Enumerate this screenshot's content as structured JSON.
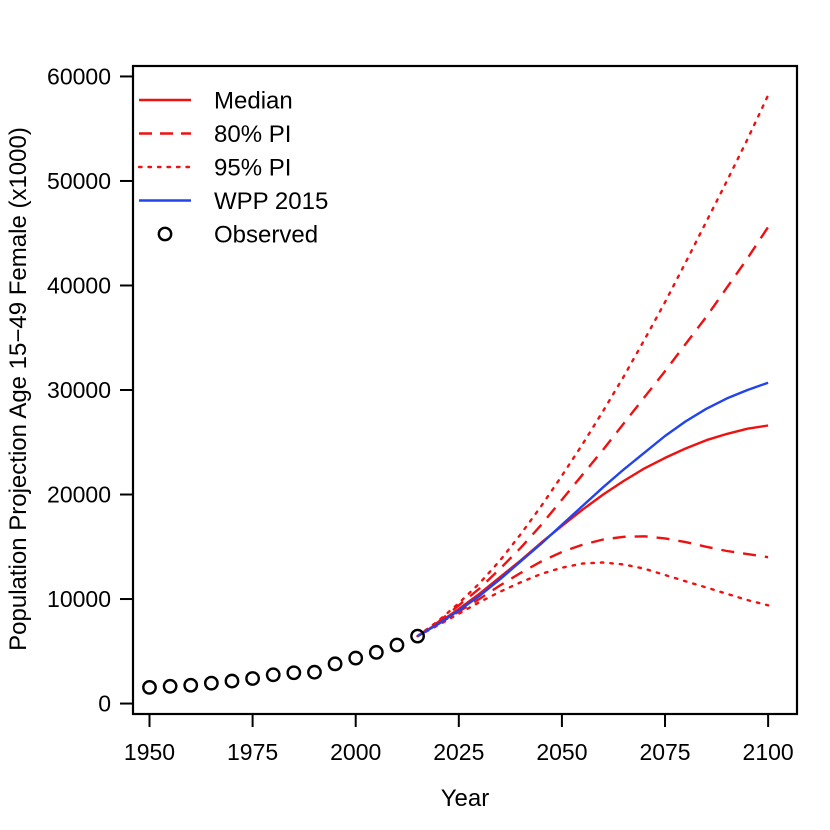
{
  "chart_data": {
    "type": "line",
    "title": "",
    "xlabel": "Year",
    "ylabel": "Population Projection Age 15−49 Female (x1000)",
    "xlim": [
      1946,
      2107
    ],
    "ylim": [
      -1000,
      61000
    ],
    "x_ticks": [
      1950,
      1975,
      2000,
      2025,
      2050,
      2075,
      2100
    ],
    "y_ticks": [
      0,
      10000,
      20000,
      30000,
      40000,
      50000,
      60000
    ],
    "grid": false,
    "legend_position": "top-left",
    "colors": {
      "red": "#ee1111",
      "blue": "#2244ee",
      "black": "#000000"
    },
    "legend": [
      {
        "label": "Median",
        "style": "solid-red"
      },
      {
        "label": "80% PI",
        "style": "dashed-red"
      },
      {
        "label": "95% PI",
        "style": "dotted-red"
      },
      {
        "label": "WPP 2015",
        "style": "solid-blue"
      },
      {
        "label": "Observed",
        "style": "circle-black"
      }
    ],
    "observed": {
      "name": "Observed",
      "x": [
        1950,
        1955,
        1960,
        1965,
        1970,
        1975,
        1980,
        1985,
        1990,
        1995,
        2000,
        2005,
        2010,
        2015
      ],
      "y": [
        1550,
        1650,
        1750,
        1950,
        2150,
        2400,
        2750,
        2950,
        3000,
        3800,
        4350,
        4900,
        5600,
        6450
      ]
    },
    "series": [
      {
        "name": "Median",
        "style": "solid-red",
        "x": [
          2015,
          2020,
          2025,
          2030,
          2035,
          2040,
          2045,
          2050,
          2055,
          2060,
          2065,
          2070,
          2075,
          2080,
          2085,
          2090,
          2095,
          2100
        ],
        "y": [
          6450,
          7700,
          9050,
          10500,
          12100,
          13700,
          15400,
          17000,
          18550,
          20000,
          21300,
          22500,
          23500,
          24400,
          25200,
          25800,
          26300,
          26600
        ]
      },
      {
        "name": "80% PI upper",
        "style": "dashed-red",
        "x": [
          2015,
          2020,
          2025,
          2030,
          2035,
          2040,
          2045,
          2050,
          2055,
          2060,
          2065,
          2070,
          2075,
          2080,
          2085,
          2090,
          2095,
          2100
        ],
        "y": [
          6450,
          7800,
          9400,
          11000,
          12900,
          14900,
          17100,
          19500,
          21900,
          24300,
          26800,
          29300,
          31800,
          34400,
          37000,
          39800,
          42600,
          45600
        ]
      },
      {
        "name": "80% PI lower",
        "style": "dashed-red",
        "x": [
          2015,
          2020,
          2025,
          2030,
          2035,
          2040,
          2045,
          2050,
          2055,
          2060,
          2065,
          2070,
          2075,
          2080,
          2085,
          2090,
          2095,
          2100
        ],
        "y": [
          6450,
          7600,
          8800,
          10000,
          11300,
          12500,
          13600,
          14500,
          15200,
          15700,
          15950,
          16000,
          15800,
          15450,
          15000,
          14600,
          14300,
          14000
        ]
      },
      {
        "name": "95% PI upper",
        "style": "dotted-red",
        "x": [
          2015,
          2020,
          2025,
          2030,
          2035,
          2040,
          2045,
          2050,
          2055,
          2060,
          2065,
          2070,
          2075,
          2080,
          2085,
          2090,
          2095,
          2100
        ],
        "y": [
          6450,
          7900,
          9600,
          11500,
          13700,
          16200,
          18900,
          21800,
          24800,
          28000,
          31300,
          34800,
          38400,
          42200,
          46100,
          50000,
          54000,
          58200
        ]
      },
      {
        "name": "95% PI lower",
        "style": "dotted-red",
        "x": [
          2015,
          2020,
          2025,
          2030,
          2035,
          2040,
          2045,
          2050,
          2055,
          2060,
          2065,
          2070,
          2075,
          2080,
          2085,
          2090,
          2095,
          2100
        ],
        "y": [
          6450,
          7500,
          8600,
          9700,
          10700,
          11600,
          12400,
          13000,
          13400,
          13500,
          13300,
          12900,
          12300,
          11700,
          11100,
          10500,
          9900,
          9400
        ]
      },
      {
        "name": "WPP 2015",
        "style": "solid-blue",
        "x": [
          2015,
          2020,
          2025,
          2030,
          2035,
          2040,
          2045,
          2050,
          2055,
          2060,
          2065,
          2070,
          2075,
          2080,
          2085,
          2090,
          2095,
          2100
        ],
        "y": [
          6450,
          7600,
          8900,
          10300,
          11900,
          13600,
          15300,
          17100,
          18900,
          20700,
          22400,
          24000,
          25600,
          27000,
          28200,
          29200,
          30000,
          30700
        ]
      }
    ]
  }
}
